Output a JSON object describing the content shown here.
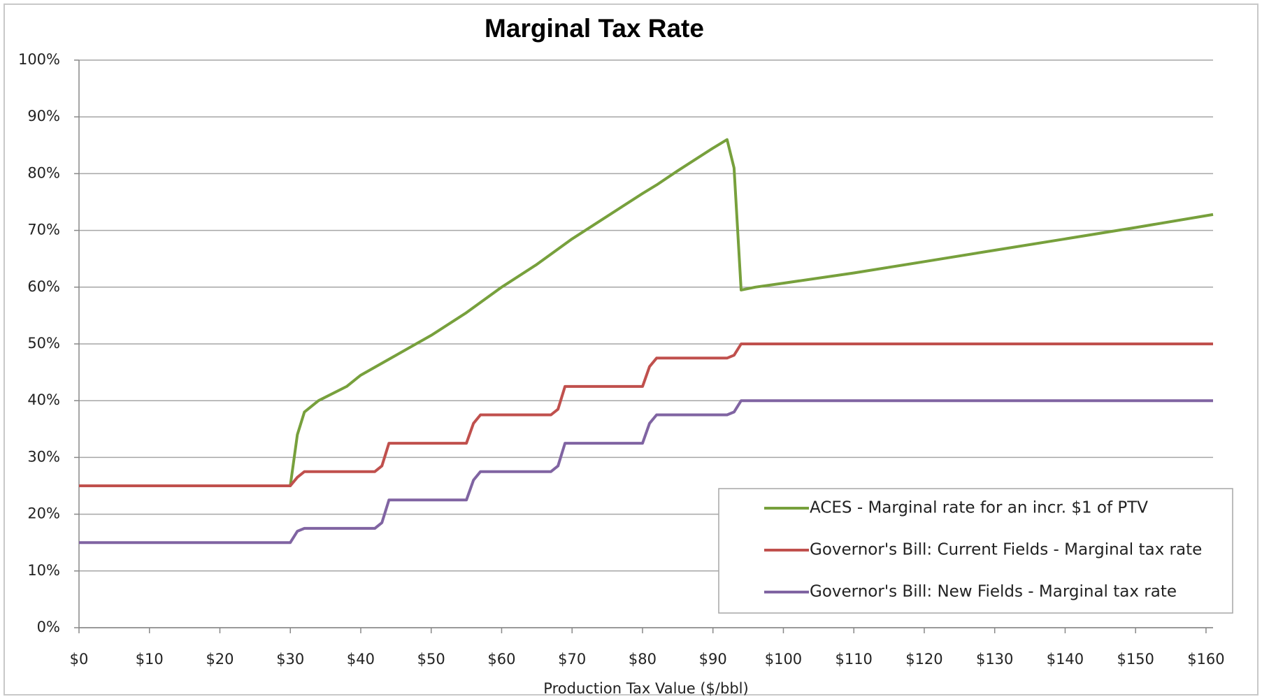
{
  "chart_data": {
    "type": "line",
    "title": "Marginal Tax Rate",
    "x_label": "Production Tax Value ($/bbl)",
    "xlim": [
      0,
      161
    ],
    "ylim": [
      0,
      100
    ],
    "xticks": [
      {
        "value": 0,
        "label": "$0"
      },
      {
        "value": 10,
        "label": "$10"
      },
      {
        "value": 20,
        "label": "$20"
      },
      {
        "value": 30,
        "label": "$30"
      },
      {
        "value": 40,
        "label": "$40"
      },
      {
        "value": 50,
        "label": "$50"
      },
      {
        "value": 60,
        "label": "$60"
      },
      {
        "value": 70,
        "label": "$70"
      },
      {
        "value": 80,
        "label": "$80"
      },
      {
        "value": 90,
        "label": "$90"
      },
      {
        "value": 100,
        "label": "$100"
      },
      {
        "value": 110,
        "label": "$110"
      },
      {
        "value": 120,
        "label": "$120"
      },
      {
        "value": 130,
        "label": "$130"
      },
      {
        "value": 140,
        "label": "$140"
      },
      {
        "value": 150,
        "label": "$150"
      },
      {
        "value": 160,
        "label": "$160"
      }
    ],
    "yticks": [
      {
        "value": 0,
        "label": "0%"
      },
      {
        "value": 10,
        "label": "10%"
      },
      {
        "value": 20,
        "label": "20%"
      },
      {
        "value": 30,
        "label": "30%"
      },
      {
        "value": 40,
        "label": "40%"
      },
      {
        "value": 50,
        "label": "50%"
      },
      {
        "value": 60,
        "label": "60%"
      },
      {
        "value": 70,
        "label": "70%"
      },
      {
        "value": 80,
        "label": "80%"
      },
      {
        "value": 90,
        "label": "90%"
      },
      {
        "value": 100,
        "label": "100%"
      }
    ],
    "grid": true,
    "legend": "lower right",
    "series": [
      {
        "name": "ACES - Marginal rate for an incr. $1 of PTV",
        "color": "#77a03c",
        "x": [
          0,
          30,
          31,
          32,
          34,
          38,
          40,
          45,
          50,
          55,
          60,
          65,
          70,
          75,
          80,
          82,
          85,
          90,
          92,
          93,
          94,
          96,
          100,
          110,
          120,
          130,
          140,
          150,
          161
        ],
        "values": [
          25,
          25,
          34,
          38,
          40,
          42.5,
          44.5,
          48,
          51.5,
          55.5,
          60,
          64,
          68.5,
          72.5,
          76.5,
          78,
          80.5,
          84.5,
          86,
          81,
          59.5,
          60,
          60.7,
          62.5,
          64.5,
          66.5,
          68.5,
          70.5,
          72.8
        ]
      },
      {
        "name": "Governor's Bill: Current Fields - Marginal tax rate",
        "color": "#c0504d",
        "x": [
          0,
          30,
          31,
          32,
          42,
          43,
          44,
          55,
          56,
          57,
          67,
          68,
          69,
          80,
          81,
          82,
          92,
          93,
          94,
          161
        ],
        "values": [
          25,
          25,
          26.5,
          27.5,
          27.5,
          28.5,
          32.5,
          32.5,
          36,
          37.5,
          37.5,
          38.5,
          42.5,
          42.5,
          46,
          47.5,
          47.5,
          48,
          50,
          50
        ]
      },
      {
        "name": "Governor's Bill: New Fields - Marginal tax rate",
        "color": "#8064a2",
        "x": [
          0,
          30,
          31,
          32,
          42,
          43,
          44,
          55,
          56,
          57,
          67,
          68,
          69,
          80,
          81,
          82,
          92,
          93,
          94,
          161
        ],
        "values": [
          15,
          15,
          17,
          17.5,
          17.5,
          18.5,
          22.5,
          22.5,
          26,
          27.5,
          27.5,
          28.5,
          32.5,
          32.5,
          36,
          37.5,
          37.5,
          38,
          40,
          40
        ]
      }
    ]
  }
}
